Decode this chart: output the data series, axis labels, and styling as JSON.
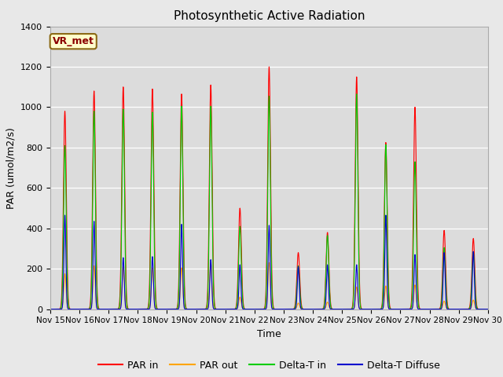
{
  "title": "Photosynthetic Active Radiation",
  "ylabel": "PAR (umol/m2/s)",
  "xlabel": "Time",
  "annotation": "VR_met",
  "ylim": [
    0,
    1400
  ],
  "fig_bg_color": "#e8e8e8",
  "plot_bg_color": "#dcdcdc",
  "line_colors": {
    "PAR in": "#ff0000",
    "PAR out": "#ffa500",
    "Delta-T in": "#00cc00",
    "Delta-T Diffuse": "#0000cd"
  },
  "xtick_labels": [
    "Nov 15",
    "Nov 16",
    "Nov 17",
    "Nov 18",
    "Nov 19",
    "Nov 20",
    "Nov 21",
    "Nov 22",
    "Nov 23",
    "Nov 24",
    "Nov 25",
    "Nov 26",
    "Nov 27",
    "Nov 28",
    "Nov 29",
    "Nov 30"
  ],
  "day_peaks": {
    "PAR_in": [
      980,
      1080,
      1100,
      1090,
      1065,
      1110,
      500,
      1200,
      280,
      380,
      1150,
      825,
      1000,
      390,
      350
    ],
    "PAR_out": [
      175,
      215,
      210,
      205,
      205,
      230,
      60,
      230,
      30,
      35,
      110,
      115,
      120,
      40,
      45
    ],
    "DeltaT_in": [
      810,
      980,
      990,
      975,
      1005,
      1005,
      410,
      1055,
      215,
      365,
      1065,
      815,
      730,
      305,
      285
    ],
    "DeltaT_diff": [
      465,
      435,
      255,
      260,
      420,
      245,
      220,
      415,
      210,
      220,
      220,
      465,
      270,
      280,
      285
    ]
  },
  "spike_widths": {
    "PAR_in": 0.12,
    "PAR_out": 0.1,
    "DeltaT_in": 0.11,
    "DeltaT_diff": 0.08
  }
}
